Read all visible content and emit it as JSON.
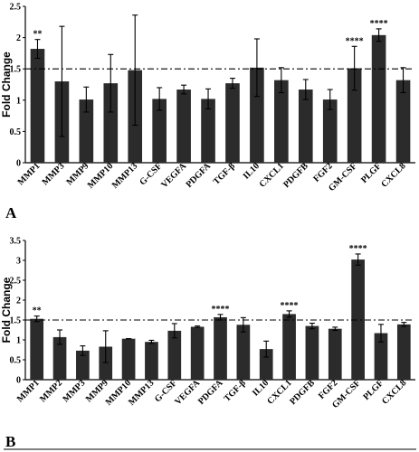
{
  "chart_data": [
    {
      "type": "bar",
      "panel_label": "A",
      "ylabel": "Fold Change",
      "ylim": [
        0,
        2.5
      ],
      "yticks": [
        "0",
        "0.5",
        "1",
        "1.5",
        "2",
        "2.5"
      ],
      "reference_line": 1.5,
      "categories": [
        "MMP1",
        "MMP3",
        "MMP9",
        "MMP10",
        "MMP13",
        "G-CSF",
        "VEGFA",
        "PDGFA",
        "TGF-β",
        "IL10",
        "CXCL1",
        "PDGFB",
        "FGF2",
        "GM-CSF",
        "PLGF",
        "CXCL8"
      ],
      "values": [
        1.82,
        1.3,
        1.01,
        1.27,
        1.48,
        1.02,
        1.17,
        1.02,
        1.27,
        1.52,
        1.32,
        1.17,
        1.01,
        1.51,
        2.04,
        1.32
      ],
      "errors": [
        0.15,
        0.88,
        0.2,
        0.46,
        0.88,
        0.18,
        0.07,
        0.16,
        0.08,
        0.46,
        0.2,
        0.16,
        0.16,
        0.35,
        0.1,
        0.2
      ],
      "annotations": [
        "**",
        "",
        "",
        "",
        "",
        "",
        "",
        "",
        "",
        "",
        "",
        "",
        "",
        "****",
        "****",
        ""
      ],
      "bar_color": "#2b2b2b"
    },
    {
      "type": "bar",
      "panel_label": "B",
      "ylabel": "Fold Change",
      "ylim": [
        0,
        3.5
      ],
      "yticks": [
        "0",
        "0.5",
        "1",
        "1.5",
        "2",
        "2.5",
        "3",
        "3.5"
      ],
      "reference_line": 1.5,
      "categories": [
        "MMP1",
        "MMP2",
        "MMP3",
        "MMP9",
        "MMP10",
        "MMP13",
        "G-CSF",
        "VEGFA",
        "PDGFA",
        "TGF-β",
        "IL10",
        "CXCL1",
        "PDGFB",
        "FGF2",
        "GM-CSF",
        "PLGF",
        "CXCL8"
      ],
      "values": [
        1.53,
        1.07,
        0.73,
        0.83,
        1.03,
        0.95,
        1.23,
        1.33,
        1.57,
        1.38,
        0.77,
        1.65,
        1.35,
        1.28,
        3.02,
        1.17,
        1.39
      ],
      "errors": [
        0.07,
        0.18,
        0.12,
        0.4,
        0.0,
        0.04,
        0.18,
        0.02,
        0.07,
        0.18,
        0.2,
        0.08,
        0.07,
        0.04,
        0.14,
        0.22,
        0.05
      ],
      "annotations": [
        "**",
        "",
        "",
        "",
        "",
        "",
        "",
        "",
        "****",
        "",
        "",
        "****",
        "",
        "",
        "****",
        "",
        ""
      ],
      "bar_color": "#2b2b2b"
    }
  ]
}
